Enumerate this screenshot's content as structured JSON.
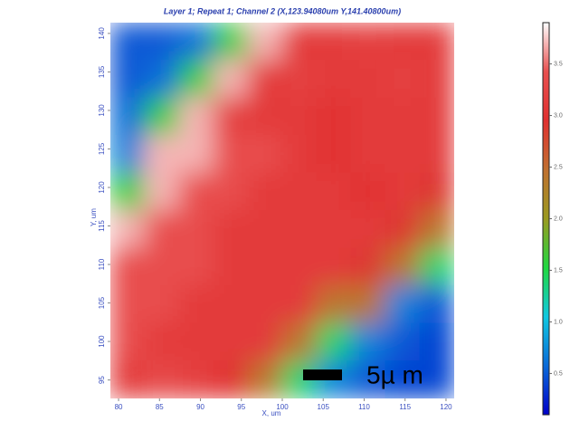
{
  "chart_data": {
    "type": "heatmap",
    "title": "Layer 1; Repeat 1; Channel 2 (X,123.94080um Y,141.40800um)",
    "x_label": "X, um",
    "y_label": "Y, um",
    "xlim": [
      79,
      121
    ],
    "ylim": [
      92.6,
      141.4
    ],
    "xticks": [
      80,
      85,
      90,
      95,
      100,
      105,
      110,
      115,
      120
    ],
    "yticks": [
      95,
      100,
      105,
      110,
      115,
      120,
      125,
      130,
      135,
      140
    ],
    "z": [
      [
        0.5,
        0.5,
        0.6,
        1.6,
        3.7,
        3.1,
        3.1,
        3.2,
        3.1,
        3.1
      ],
      [
        0.5,
        0.6,
        1.6,
        3.7,
        3.1,
        3.2,
        3.1,
        3.1,
        3.2,
        3.1
      ],
      [
        0.6,
        1.6,
        3.7,
        3.2,
        3.1,
        3.1,
        3.0,
        3.1,
        3.1,
        3.1
      ],
      [
        0.7,
        3.7,
        3.7,
        3.4,
        3.4,
        3.1,
        3.0,
        3.1,
        3.1,
        3.1
      ],
      [
        1.6,
        3.7,
        3.4,
        3.4,
        3.1,
        3.1,
        3.1,
        3.0,
        3.1,
        2.9
      ],
      [
        3.7,
        3.4,
        3.4,
        3.1,
        3.1,
        3.1,
        3.1,
        3.1,
        2.9,
        2.4
      ],
      [
        3.4,
        3.4,
        3.4,
        3.1,
        3.1,
        3.1,
        3.1,
        2.9,
        2.4,
        1.4
      ],
      [
        3.4,
        3.4,
        3.1,
        3.1,
        3.1,
        3.1,
        2.4,
        2.4,
        0.7,
        0.5
      ],
      [
        3.4,
        3.1,
        3.1,
        3.1,
        3.1,
        2.4,
        1.4,
        0.7,
        0.5,
        0.4
      ],
      [
        3.1,
        3.3,
        3.2,
        3.0,
        2.4,
        1.4,
        0.7,
        0.5,
        0.4,
        0.4
      ]
    ],
    "clim": [
      0.1,
      3.9
    ],
    "cticks": [
      0.5,
      {
        "value": 1,
        "label": "1.0"
      },
      1.5,
      {
        "value": 2,
        "label": "2.0"
      },
      2.5,
      {
        "value": 3,
        "label": "3.0"
      },
      3.5
    ],
    "colormap": [
      "#0000c8",
      "#0a6ad8",
      "#10c8e0",
      "#20d840",
      "#9a9a20",
      "#c07030",
      "#e03030",
      "#e85050",
      "#ffffff"
    ],
    "scale_bar_label": "5µ m"
  }
}
